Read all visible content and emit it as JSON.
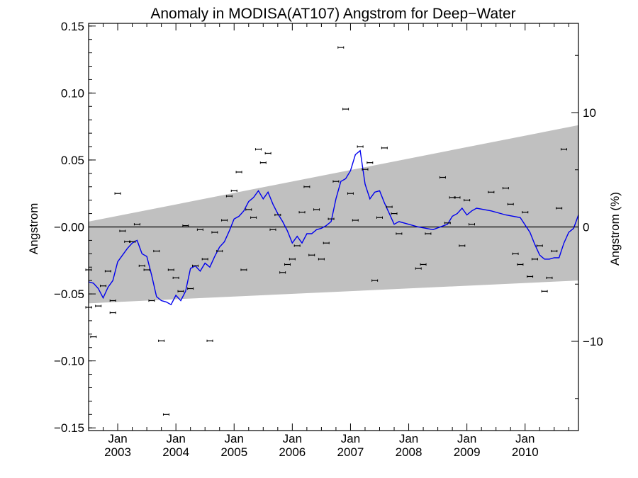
{
  "chart_data": {
    "type": "scatter",
    "title": "Anomaly in MODISA(AT107) Angstrom for Deep−Water",
    "ylabel": "Angstrom",
    "ylabel_right": "Angstrom (%)",
    "xlabel": "",
    "ylim": [
      -0.152,
      0.152
    ],
    "ylim_right_percent": [
      -17.8,
      17.8
    ],
    "xlim": [
      "2002-07",
      "2010-12"
    ],
    "grid": false,
    "y_ticks": [
      {
        "value": 0.15,
        "label": "0.15"
      },
      {
        "value": 0.1,
        "label": "0.10"
      },
      {
        "value": 0.05,
        "label": "0.05"
      },
      {
        "value": 0.0,
        "label": "−0.00"
      },
      {
        "value": -0.05,
        "label": "−0.05"
      },
      {
        "value": -0.1,
        "label": "−0.10"
      },
      {
        "value": -0.15,
        "label": "−0.15"
      }
    ],
    "y_ticks_right": [
      {
        "value": 10,
        "label": "10"
      },
      {
        "value": 0,
        "label": "0"
      },
      {
        "value": -10,
        "label": "−10"
      }
    ],
    "x_ticks": [
      {
        "date": "2003-01",
        "line1": "Jan",
        "line2": "2003"
      },
      {
        "date": "2004-01",
        "line1": "Jan",
        "line2": "2004"
      },
      {
        "date": "2005-01",
        "line1": "Jan",
        "line2": "2005"
      },
      {
        "date": "2006-01",
        "line1": "Jan",
        "line2": "2006"
      },
      {
        "date": "2007-01",
        "line1": "Jan",
        "line2": "2007"
      },
      {
        "date": "2008-01",
        "line1": "Jan",
        "line2": "2008"
      },
      {
        "date": "2009-01",
        "line1": "Jan",
        "line2": "2009"
      },
      {
        "date": "2010-01",
        "line1": "Jan",
        "line2": "2010"
      }
    ],
    "confidence_band": {
      "start": {
        "date": "2002-07",
        "upper": 0.004,
        "lower": -0.057
      },
      "end": {
        "date": "2010-12",
        "upper": 0.076,
        "lower": -0.04
      }
    },
    "colors": {
      "band": "#c0c0c0",
      "smoothed": "#0000ee",
      "points": "#000000",
      "zero_line": "#000000"
    },
    "smoothed_series": [
      {
        "date": "2002-07",
        "y": -0.041
      },
      {
        "date": "2002-08",
        "y": -0.042
      },
      {
        "date": "2002-09",
        "y": -0.046
      },
      {
        "date": "2002-10",
        "y": -0.053
      },
      {
        "date": "2002-11",
        "y": -0.045
      },
      {
        "date": "2002-12",
        "y": -0.04
      },
      {
        "date": "2003-01",
        "y": -0.026
      },
      {
        "date": "2003-02",
        "y": -0.021
      },
      {
        "date": "2003-03",
        "y": -0.016
      },
      {
        "date": "2003-04",
        "y": -0.012
      },
      {
        "date": "2003-05",
        "y": -0.01
      },
      {
        "date": "2003-06",
        "y": -0.02
      },
      {
        "date": "2003-07",
        "y": -0.022
      },
      {
        "date": "2003-08",
        "y": -0.036
      },
      {
        "date": "2003-09",
        "y": -0.052
      },
      {
        "date": "2003-10",
        "y": -0.055
      },
      {
        "date": "2003-11",
        "y": -0.056
      },
      {
        "date": "2003-12",
        "y": -0.058
      },
      {
        "date": "2004-01",
        "y": -0.051
      },
      {
        "date": "2004-02",
        "y": -0.055
      },
      {
        "date": "2004-03",
        "y": -0.048
      },
      {
        "date": "2004-04",
        "y": -0.031
      },
      {
        "date": "2004-05",
        "y": -0.029
      },
      {
        "date": "2004-06",
        "y": -0.033
      },
      {
        "date": "2004-07",
        "y": -0.027
      },
      {
        "date": "2004-08",
        "y": -0.03
      },
      {
        "date": "2004-09",
        "y": -0.022
      },
      {
        "date": "2004-10",
        "y": -0.015
      },
      {
        "date": "2004-11",
        "y": -0.011
      },
      {
        "date": "2004-12",
        "y": -0.003
      },
      {
        "date": "2005-01",
        "y": 0.006
      },
      {
        "date": "2005-02",
        "y": 0.008
      },
      {
        "date": "2005-03",
        "y": 0.012
      },
      {
        "date": "2005-04",
        "y": 0.019
      },
      {
        "date": "2005-05",
        "y": 0.022
      },
      {
        "date": "2005-06",
        "y": 0.027
      },
      {
        "date": "2005-07",
        "y": 0.021
      },
      {
        "date": "2005-08",
        "y": 0.026
      },
      {
        "date": "2005-09",
        "y": 0.017
      },
      {
        "date": "2005-10",
        "y": 0.01
      },
      {
        "date": "2005-11",
        "y": 0.004
      },
      {
        "date": "2005-12",
        "y": -0.003
      },
      {
        "date": "2006-01",
        "y": -0.012
      },
      {
        "date": "2006-02",
        "y": -0.007
      },
      {
        "date": "2006-03",
        "y": -0.012
      },
      {
        "date": "2006-04",
        "y": -0.005
      },
      {
        "date": "2006-05",
        "y": -0.005
      },
      {
        "date": "2006-06",
        "y": -0.002
      },
      {
        "date": "2006-07",
        "y": -0.001
      },
      {
        "date": "2006-08",
        "y": 0.001
      },
      {
        "date": "2006-09",
        "y": 0.004
      },
      {
        "date": "2006-10",
        "y": 0.021
      },
      {
        "date": "2006-11",
        "y": 0.034
      },
      {
        "date": "2006-12",
        "y": 0.036
      },
      {
        "date": "2007-01",
        "y": 0.042
      },
      {
        "date": "2007-02",
        "y": 0.054
      },
      {
        "date": "2007-03",
        "y": 0.057
      },
      {
        "date": "2007-04",
        "y": 0.032
      },
      {
        "date": "2007-05",
        "y": 0.021
      },
      {
        "date": "2007-06",
        "y": 0.026
      },
      {
        "date": "2007-07",
        "y": 0.027
      },
      {
        "date": "2007-08",
        "y": 0.018
      },
      {
        "date": "2007-09",
        "y": 0.01
      },
      {
        "date": "2007-10",
        "y": 0.002
      },
      {
        "date": "2007-11",
        "y": 0.004
      },
      {
        "date": "2007-12",
        "y": 0.003
      },
      {
        "date": "2008-03",
        "y": 0.0
      },
      {
        "date": "2008-06",
        "y": -0.002
      },
      {
        "date": "2008-09",
        "y": 0.002
      },
      {
        "date": "2008-10",
        "y": 0.008
      },
      {
        "date": "2008-11",
        "y": 0.01
      },
      {
        "date": "2008-12",
        "y": 0.014
      },
      {
        "date": "2009-01",
        "y": 0.009
      },
      {
        "date": "2009-02",
        "y": 0.012
      },
      {
        "date": "2009-03",
        "y": 0.014
      },
      {
        "date": "2009-06",
        "y": 0.012
      },
      {
        "date": "2009-09",
        "y": 0.009
      },
      {
        "date": "2009-12",
        "y": 0.007
      },
      {
        "date": "2010-02",
        "y": -0.004
      },
      {
        "date": "2010-03",
        "y": -0.013
      },
      {
        "date": "2010-04",
        "y": -0.021
      },
      {
        "date": "2010-05",
        "y": -0.024
      },
      {
        "date": "2010-06",
        "y": -0.024
      },
      {
        "date": "2010-07",
        "y": -0.023
      },
      {
        "date": "2010-08",
        "y": -0.023
      },
      {
        "date": "2010-09",
        "y": -0.012
      },
      {
        "date": "2010-10",
        "y": -0.004
      },
      {
        "date": "2010-11",
        "y": -0.001
      },
      {
        "date": "2010-12",
        "y": 0.009
      }
    ],
    "points": [
      {
        "date": "2002-07",
        "y": -0.032
      },
      {
        "date": "2002-07",
        "y": -0.06
      },
      {
        "date": "2002-08",
        "y": -0.082
      },
      {
        "date": "2002-09",
        "y": -0.059
      },
      {
        "date": "2002-10",
        "y": -0.044
      },
      {
        "date": "2002-11",
        "y": -0.033
      },
      {
        "date": "2002-12",
        "y": -0.055
      },
      {
        "date": "2002-12",
        "y": -0.064
      },
      {
        "date": "2003-01",
        "y": 0.025
      },
      {
        "date": "2003-02",
        "y": -0.003
      },
      {
        "date": "2003-03",
        "y": -0.011
      },
      {
        "date": "2003-04",
        "y": -0.011
      },
      {
        "date": "2003-05",
        "y": 0.002
      },
      {
        "date": "2003-06",
        "y": -0.029
      },
      {
        "date": "2003-07",
        "y": -0.032
      },
      {
        "date": "2003-08",
        "y": -0.055
      },
      {
        "date": "2003-09",
        "y": -0.018
      },
      {
        "date": "2003-10",
        "y": -0.085
      },
      {
        "date": "2003-11",
        "y": -0.14
      },
      {
        "date": "2003-12",
        "y": -0.032
      },
      {
        "date": "2004-01",
        "y": -0.038
      },
      {
        "date": "2004-02",
        "y": -0.048
      },
      {
        "date": "2004-03",
        "y": 0.001
      },
      {
        "date": "2004-04",
        "y": -0.046
      },
      {
        "date": "2004-05",
        "y": -0.029
      },
      {
        "date": "2004-06",
        "y": -0.002
      },
      {
        "date": "2004-07",
        "y": -0.024
      },
      {
        "date": "2004-08",
        "y": -0.085
      },
      {
        "date": "2004-09",
        "y": -0.004
      },
      {
        "date": "2004-10",
        "y": -0.018
      },
      {
        "date": "2004-11",
        "y": 0.005
      },
      {
        "date": "2004-12",
        "y": 0.023
      },
      {
        "date": "2005-01",
        "y": 0.027
      },
      {
        "date": "2005-02",
        "y": 0.041
      },
      {
        "date": "2005-03",
        "y": -0.032
      },
      {
        "date": "2005-04",
        "y": 0.013
      },
      {
        "date": "2005-05",
        "y": 0.007
      },
      {
        "date": "2005-06",
        "y": 0.058
      },
      {
        "date": "2005-07",
        "y": 0.048
      },
      {
        "date": "2005-08",
        "y": 0.055
      },
      {
        "date": "2005-09",
        "y": -0.002
      },
      {
        "date": "2005-10",
        "y": 0.009
      },
      {
        "date": "2005-11",
        "y": -0.034
      },
      {
        "date": "2005-12",
        "y": -0.028
      },
      {
        "date": "2006-01",
        "y": -0.024
      },
      {
        "date": "2006-02",
        "y": -0.014
      },
      {
        "date": "2006-03",
        "y": 0.011
      },
      {
        "date": "2006-04",
        "y": 0.03
      },
      {
        "date": "2006-05",
        "y": -0.021
      },
      {
        "date": "2006-06",
        "y": 0.013
      },
      {
        "date": "2006-07",
        "y": -0.024
      },
      {
        "date": "2006-08",
        "y": -0.012
      },
      {
        "date": "2006-09",
        "y": 0.006
      },
      {
        "date": "2006-10",
        "y": 0.034
      },
      {
        "date": "2006-11",
        "y": 0.134
      },
      {
        "date": "2006-12",
        "y": 0.088
      },
      {
        "date": "2007-01",
        "y": 0.025
      },
      {
        "date": "2007-02",
        "y": 0.005
      },
      {
        "date": "2007-03",
        "y": 0.06
      },
      {
        "date": "2007-04",
        "y": 0.043
      },
      {
        "date": "2007-05",
        "y": 0.048
      },
      {
        "date": "2007-06",
        "y": -0.04
      },
      {
        "date": "2007-07",
        "y": 0.007
      },
      {
        "date": "2007-08",
        "y": 0.059
      },
      {
        "date": "2007-09",
        "y": 0.015
      },
      {
        "date": "2007-10",
        "y": 0.01
      },
      {
        "date": "2007-11",
        "y": -0.005
      },
      {
        "date": "2008-03",
        "y": -0.031
      },
      {
        "date": "2008-04",
        "y": -0.028
      },
      {
        "date": "2008-05",
        "y": -0.005
      },
      {
        "date": "2008-08",
        "y": 0.037
      },
      {
        "date": "2008-09",
        "y": 0.003
      },
      {
        "date": "2008-10",
        "y": 0.022
      },
      {
        "date": "2008-11",
        "y": 0.022
      },
      {
        "date": "2008-12",
        "y": -0.014
      },
      {
        "date": "2009-01",
        "y": 0.02
      },
      {
        "date": "2009-02",
        "y": 0.002
      },
      {
        "date": "2009-06",
        "y": 0.026
      },
      {
        "date": "2009-09",
        "y": 0.029
      },
      {
        "date": "2009-10",
        "y": 0.017
      },
      {
        "date": "2009-11",
        "y": -0.02
      },
      {
        "date": "2009-12",
        "y": -0.028
      },
      {
        "date": "2010-01",
        "y": 0.011
      },
      {
        "date": "2010-02",
        "y": -0.037
      },
      {
        "date": "2010-03",
        "y": -0.024
      },
      {
        "date": "2010-04",
        "y": -0.014
      },
      {
        "date": "2010-05",
        "y": -0.048
      },
      {
        "date": "2010-06",
        "y": -0.038
      },
      {
        "date": "2010-07",
        "y": -0.018
      },
      {
        "date": "2010-08",
        "y": 0.014
      },
      {
        "date": "2010-09",
        "y": 0.058
      }
    ]
  }
}
